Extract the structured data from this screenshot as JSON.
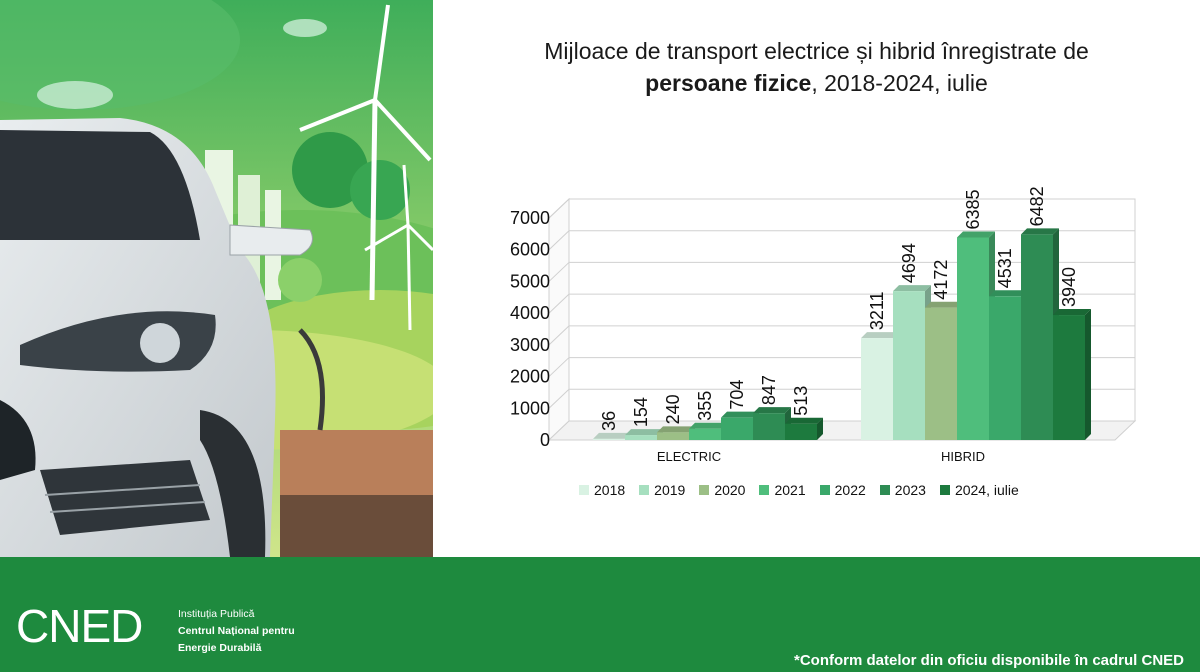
{
  "chart_data": {
    "type": "bar",
    "title_line1": "Mijloace de transport electrice și hibrid înregistrate de",
    "title_bold": "persoane fizice",
    "title_rest": ", 2018-2024, iulie",
    "categories": [
      "ELECTRIC",
      "HIBRID"
    ],
    "series": [
      {
        "name": "2018",
        "color": "#d9f2e3",
        "values": [
          36,
          3211
        ]
      },
      {
        "name": "2019",
        "color": "#a6dfbf",
        "values": [
          154,
          4694
        ]
      },
      {
        "name": "2020",
        "color": "#9cbf86",
        "values": [
          240,
          4172
        ]
      },
      {
        "name": "2021",
        "color": "#4fbe7c",
        "values": [
          355,
          6385
        ]
      },
      {
        "name": "2022",
        "color": "#3aa86a",
        "values": [
          704,
          4531
        ]
      },
      {
        "name": "2023",
        "color": "#2e8c54",
        "values": [
          847,
          6482
        ]
      },
      {
        "name": "2024, iulie",
        "color": "#1d7a3e",
        "values": [
          513,
          3940
        ]
      }
    ],
    "yticks": [
      0,
      1000,
      2000,
      3000,
      4000,
      5000,
      6000,
      7000
    ],
    "ylim": [
      0,
      7000
    ],
    "grid": true,
    "legend": "bottom"
  },
  "footer": {
    "logo_text": "CNED",
    "institution_line1": "Instituția Publică",
    "institution_line2": "Centrul Național pentru",
    "institution_line3": "Energie Durabilă",
    "note": "*Conform datelor din oficiu disponibile în cadrul CNED"
  },
  "colors": {
    "footer_green": "#1e8a3e",
    "grid": "#d0d0d0"
  }
}
